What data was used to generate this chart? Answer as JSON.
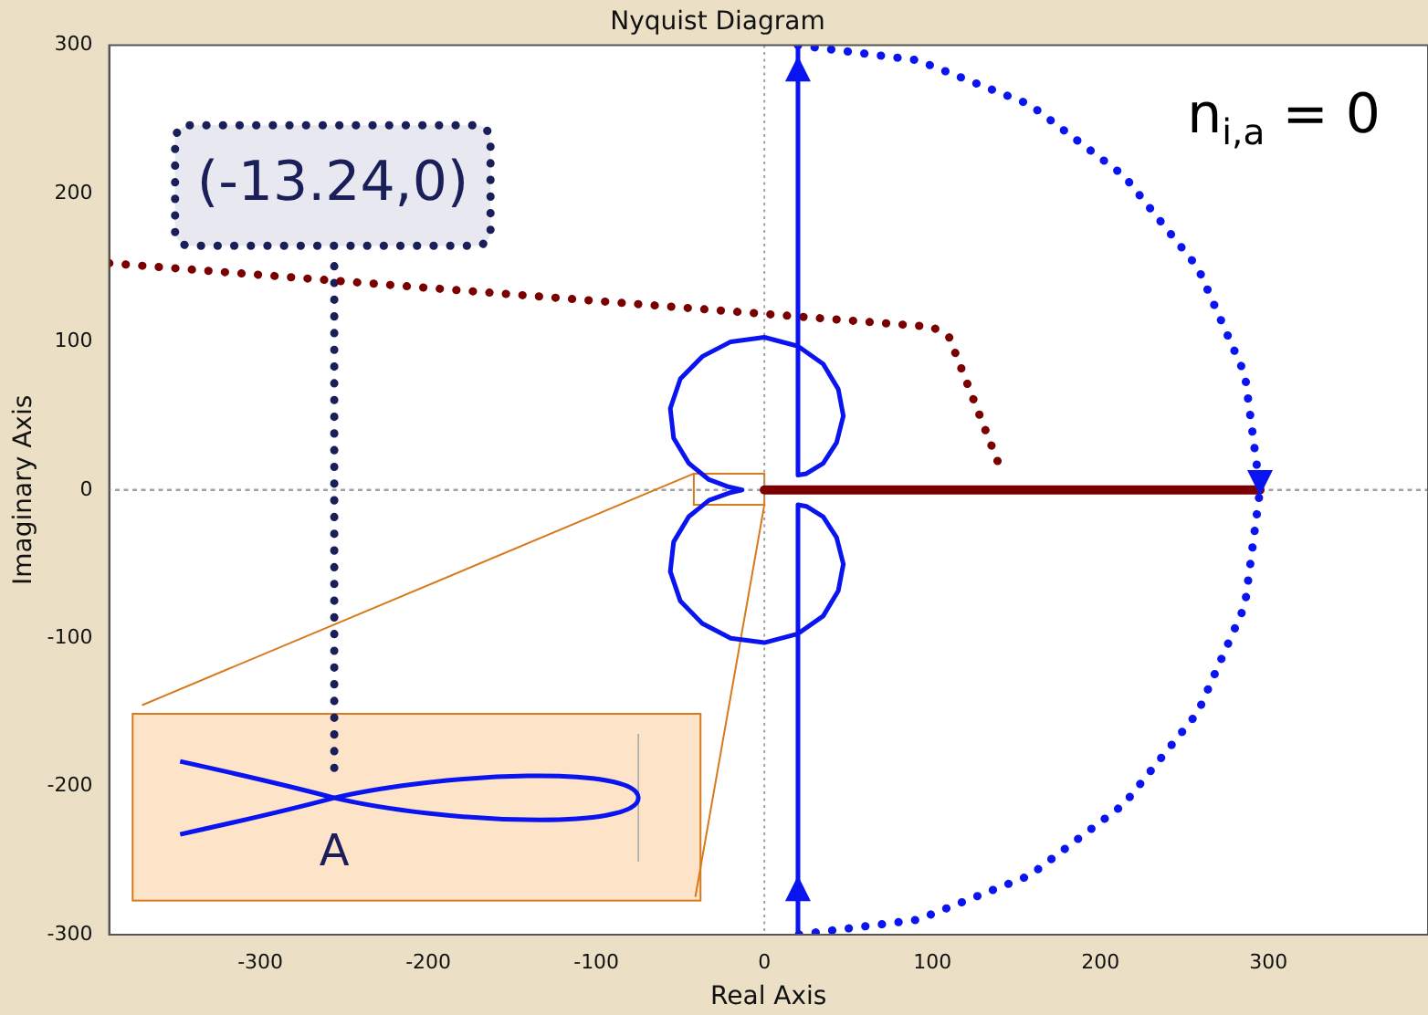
{
  "chart_data": {
    "type": "line",
    "title": "Nyquist Diagram",
    "xlabel": "Real Axis",
    "ylabel": "Imaginary Axis",
    "xlim": [
      -390,
      395
    ],
    "ylim": [
      -300,
      300
    ],
    "xticks": [
      -300,
      -200,
      -100,
      0,
      100,
      200,
      300
    ],
    "yticks": [
      -300,
      -200,
      -100,
      0,
      100,
      200,
      300
    ],
    "grid": false,
    "legend": false,
    "marker": "none",
    "ref_lines": [
      {
        "axis": "x",
        "value": 0,
        "color": "#a0a0a0",
        "line_style": "dotted"
      },
      {
        "axis": "y",
        "value": 0,
        "color": "#a0a0a0",
        "line_style": "dotted"
      }
    ],
    "annotations": [
      "(-13.24,0)",
      "n$_{i,a}$ = 0",
      "A"
    ],
    "series": [
      {
        "color": "#0a14f0",
        "line_style": "solid",
        "x": [
          20,
          20,
          25,
          35,
          43,
          47,
          44,
          35,
          20,
          0,
          -20,
          -37,
          -50,
          -56,
          -54,
          -45,
          -33,
          -21,
          -13.24,
          -21,
          -33,
          -45,
          -54,
          -56,
          -50,
          -37,
          -20,
          0,
          20,
          35,
          44,
          47,
          43,
          35,
          25,
          20,
          20
        ],
        "values": [
          300,
          10,
          11,
          18,
          32,
          50,
          68,
          85,
          97,
          103,
          100,
          90,
          75,
          55,
          35,
          18,
          7,
          2,
          0,
          -2,
          -7,
          -18,
          -35,
          -55,
          -75,
          -90,
          -100,
          -103,
          -97,
          -85,
          -68,
          -50,
          -32,
          -18,
          -11,
          -10,
          -300
        ]
      },
      {
        "color": "#0a14f0",
        "line_style": "dotted",
        "x": [
          20,
          91,
          158,
          214,
          258,
          286,
          295,
          286,
          258,
          214,
          158,
          91,
          20
        ],
        "values": [
          300,
          290,
          260,
          212,
          150,
          78,
          0,
          -78,
          -150,
          -212,
          -260,
          -290,
          -300
        ]
      },
      {
        "color": "#7a0000",
        "line_style": "solid",
        "x": [
          0,
          295
        ],
        "values": [
          0,
          0
        ]
      },
      {
        "color": "#7a0000",
        "line_style": "dotted",
        "x": [
          -390,
          100,
          110,
          140
        ],
        "values": [
          153,
          110,
          103,
          16
        ]
      },
      {
        "color": "#1a1f5a",
        "line_style": "dotted",
        "x": [
          -256,
          -256
        ],
        "values": [
          151,
          -195
        ]
      },
      {
        "color": "#d77a1c",
        "line_style": "solid",
        "x": [
          -42,
          -370
        ],
        "values": [
          11,
          -145
        ]
      },
      {
        "color": "#d77a1c",
        "line_style": "solid",
        "x": [
          0,
          -41
        ],
        "values": [
          -10,
          -274
        ]
      }
    ]
  }
}
